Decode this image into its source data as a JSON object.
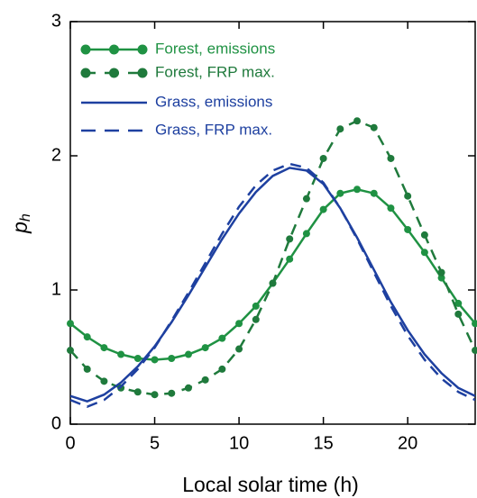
{
  "chart_data": {
    "type": "line",
    "xlabel": "Local solar time (h)",
    "ylabel": "p",
    "ylabel_sub": "h",
    "x": [
      0,
      1,
      2,
      3,
      4,
      5,
      6,
      7,
      8,
      9,
      10,
      11,
      12,
      13,
      14,
      15,
      16,
      17,
      18,
      19,
      20,
      21,
      22,
      23,
      24
    ],
    "xlim": [
      0,
      24
    ],
    "xticks": [
      0,
      5,
      10,
      15,
      20
    ],
    "ylim": [
      0,
      3
    ],
    "yticks": [
      0,
      1,
      2,
      3
    ],
    "legend": "upper-left",
    "series": [
      {
        "name": "Forest, emissions",
        "color": "#1f9243",
        "linestyle": "solid",
        "marker": true,
        "values": [
          0.75,
          0.65,
          0.57,
          0.52,
          0.49,
          0.48,
          0.49,
          0.52,
          0.57,
          0.64,
          0.75,
          0.88,
          1.05,
          1.23,
          1.42,
          1.6,
          1.72,
          1.75,
          1.72,
          1.61,
          1.45,
          1.28,
          1.09,
          0.9,
          0.75
        ]
      },
      {
        "name": "Forest, FRP max.",
        "color": "#1f7a3c",
        "linestyle": "dashed",
        "marker": true,
        "values": [
          0.55,
          0.41,
          0.32,
          0.27,
          0.24,
          0.22,
          0.23,
          0.27,
          0.33,
          0.41,
          0.56,
          0.78,
          1.05,
          1.38,
          1.68,
          1.98,
          2.2,
          2.26,
          2.21,
          1.98,
          1.7,
          1.41,
          1.13,
          0.82,
          0.55
        ]
      },
      {
        "name": "Grass, emissions",
        "color": "#1e40a0",
        "linestyle": "solid",
        "marker": false,
        "values": [
          0.21,
          0.17,
          0.22,
          0.31,
          0.43,
          0.58,
          0.76,
          0.96,
          1.17,
          1.38,
          1.57,
          1.73,
          1.85,
          1.91,
          1.89,
          1.79,
          1.61,
          1.39,
          1.15,
          0.91,
          0.7,
          0.52,
          0.38,
          0.27,
          0.21
        ]
      },
      {
        "name": "Grass, FRP max.",
        "color": "#1e40a0",
        "linestyle": "dashed",
        "marker": false,
        "values": [
          0.18,
          0.13,
          0.18,
          0.28,
          0.41,
          0.57,
          0.77,
          0.98,
          1.2,
          1.42,
          1.62,
          1.78,
          1.89,
          1.94,
          1.91,
          1.8,
          1.61,
          1.38,
          1.13,
          0.88,
          0.66,
          0.48,
          0.34,
          0.24,
          0.18
        ]
      }
    ]
  }
}
